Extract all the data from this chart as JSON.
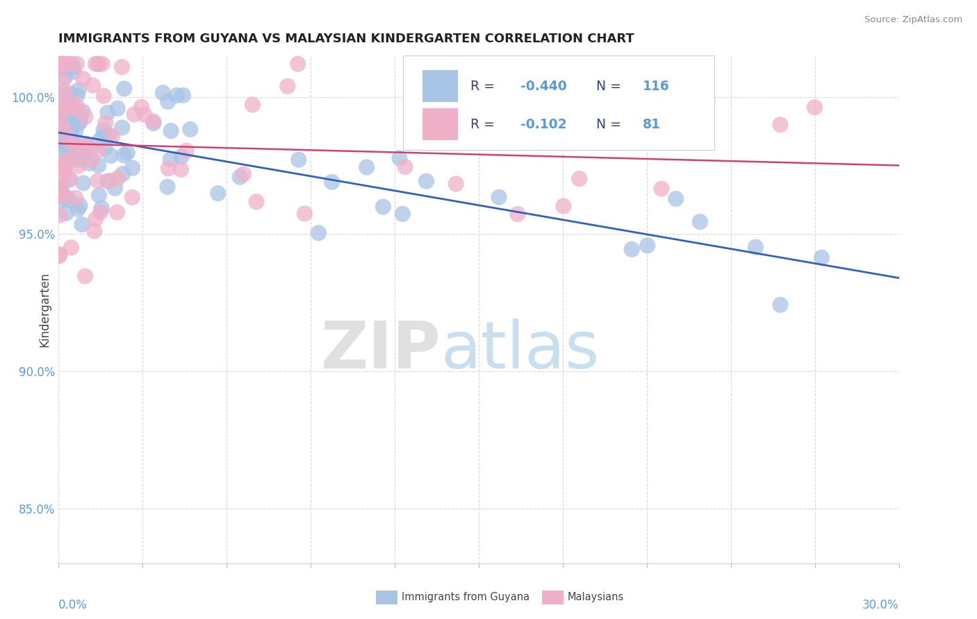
{
  "title": "IMMIGRANTS FROM GUYANA VS MALAYSIAN KINDERGARTEN CORRELATION CHART",
  "source": "Source: ZipAtlas.com",
  "ylabel": "Kindergarten",
  "xlim": [
    0.0,
    30.0
  ],
  "ylim": [
    83.0,
    101.5
  ],
  "yticks": [
    85.0,
    90.0,
    95.0,
    100.0
  ],
  "ytick_labels": [
    "85.0%",
    "90.0%",
    "95.0%",
    "100.0%"
  ],
  "blue_R": -0.44,
  "blue_N": 116,
  "pink_R": -0.102,
  "pink_N": 81,
  "blue_color": "#a8c4e5",
  "pink_color": "#f0b0c8",
  "blue_line_color": "#3060c0",
  "pink_line_color": "#d04070",
  "legend_label_blue": "Immigrants from Guyana",
  "legend_label_pink": "Malaysians",
  "background_color": "#ffffff",
  "grid_color": "#d8d8d8",
  "tick_color": "#5b9bd5",
  "title_color": "#222222",
  "source_color": "#888888",
  "ylabel_color": "#444444",
  "blue_line_y0": 98.7,
  "blue_line_y1": 93.4,
  "pink_line_y0": 98.3,
  "pink_line_y1": 97.5,
  "watermark_zip_color": "#e0e0e0",
  "watermark_atlas_color": "#c8dff0"
}
